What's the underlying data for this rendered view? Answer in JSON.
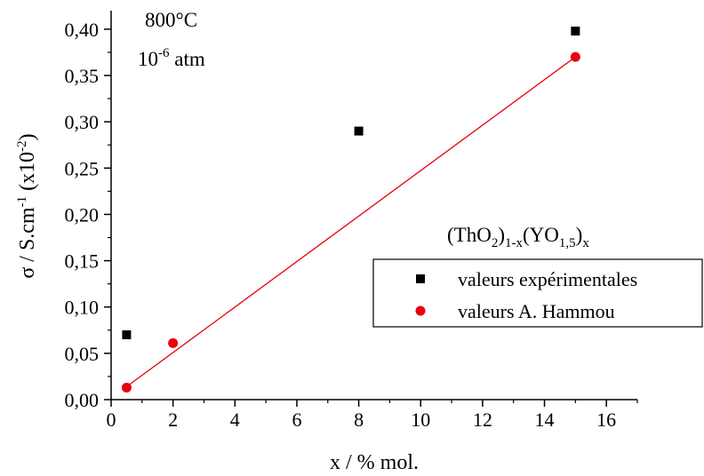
{
  "chart_data": {
    "type": "scatter",
    "xlabel": "x / % mol.",
    "ylabel": {
      "base": "σ / S.cm",
      "sup1": "-1",
      "mid": " (x10",
      "sup2": "-2",
      "end": ")"
    },
    "xlim": [
      0,
      17
    ],
    "ylim": [
      0,
      0.42
    ],
    "xticks": [
      0,
      2,
      4,
      6,
      8,
      10,
      12,
      14,
      16
    ],
    "yticks": [
      0,
      0.05,
      0.1,
      0.15,
      0.2,
      0.25,
      0.3,
      0.35,
      0.4
    ],
    "xtick_labels": [
      "0",
      "2",
      "4",
      "6",
      "8",
      "10",
      "12",
      "14",
      "16"
    ],
    "ytick_labels": [
      "0,00",
      "0,05",
      "0,10",
      "0,15",
      "0,20",
      "0,25",
      "0,30",
      "0,35",
      "0,40"
    ],
    "annotations": {
      "temperature": "800°C",
      "pressure_base": "10",
      "pressure_exp": "-6",
      "pressure_unit": " atm",
      "formula": {
        "p1": "(ThO",
        "s1": "2",
        "p2": ")",
        "s2": "1-x",
        "p3": "(YO",
        "s3": "1,5",
        "p4": ")",
        "s4": "x"
      }
    },
    "legend_position": "center-right",
    "grid": false,
    "series": [
      {
        "name": "valeurs expérimentales",
        "marker": "square",
        "color": "#000000",
        "points": [
          [
            0.5,
            0.07
          ],
          [
            8,
            0.29
          ],
          [
            15,
            0.398
          ]
        ]
      },
      {
        "name": "valeurs A. Hammou",
        "marker": "circle",
        "color": "#e8000b",
        "points": [
          [
            0.5,
            0.013
          ],
          [
            2,
            0.061
          ],
          [
            15,
            0.37
          ]
        ]
      }
    ],
    "fit_line": {
      "color": "#e8000b",
      "from": [
        0.5,
        0.014
      ],
      "to": [
        15,
        0.37
      ]
    }
  }
}
